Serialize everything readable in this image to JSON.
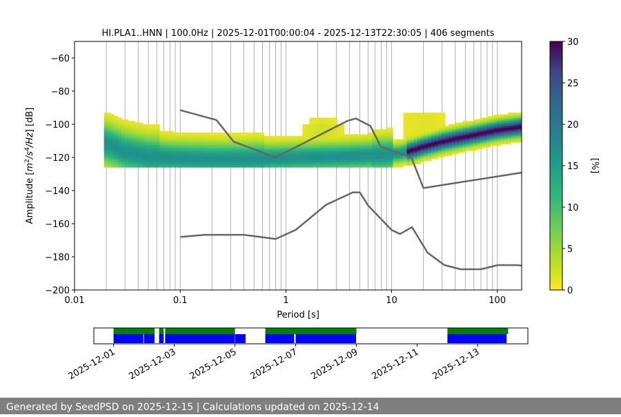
{
  "chart_data": [
    {
      "type": "heatmap",
      "title": "HI.PLA1..HNN | 100.0Hz | 2025-12-01T00:00:04 - 2025-12-13T22:30:05 | 406 segments",
      "xlabel": "Period [s]",
      "ylabel_parts": {
        "pre": "Amplitude [",
        "m": "m",
        "m_exp": "2",
        "slash": "/",
        "s": "s",
        "s_exp": "4",
        "rest": "/Hz",
        "post": "] [dB]"
      },
      "x_scale": "log",
      "xlim": [
        0.01,
        170
      ],
      "ylim": [
        -200,
        -50
      ],
      "x_ticks": [
        0.01,
        0.1,
        1,
        10,
        100
      ],
      "x_tick_labels": [
        "0.01",
        "0.1",
        "1",
        "10",
        "100"
      ],
      "y_ticks": [
        -200,
        -180,
        -160,
        -140,
        -120,
        -100,
        -80,
        -60
      ],
      "y_tick_labels": [
        "−200",
        "−180",
        "−160",
        "−140",
        "−120",
        "−100",
        "−80",
        "−60"
      ],
      "grid": "vertical, log period",
      "colormap": "viridis_r",
      "colorbar": {
        "label": "[%]",
        "min": 0,
        "max": 30,
        "ticks": [
          0,
          5,
          10,
          15,
          20,
          25,
          30
        ],
        "tick_labels": [
          "0",
          "5",
          "10",
          "15",
          "20",
          "25",
          "30"
        ]
      },
      "mode_curve": {
        "period": [
          0.02,
          0.03,
          0.05,
          0.1,
          0.2,
          0.4,
          0.8,
          1.5,
          3,
          5,
          8,
          12,
          16,
          20,
          30,
          50,
          100,
          170
        ],
        "db": [
          -112,
          -117,
          -120,
          -121,
          -121.5,
          -121.5,
          -121,
          -120.5,
          -120,
          -119.5,
          -119,
          -118,
          -116,
          -114,
          -111,
          -108,
          -104,
          -102
        ]
      },
      "noise_models": [
        {
          "name": "NHNM",
          "color": "#666666",
          "period": [
            0.1,
            0.22,
            0.32,
            0.8,
            3.8,
            4.6,
            6.3,
            7.9,
            15.4,
            20,
            354.8
          ],
          "db": [
            -91.5,
            -97.4,
            -110.5,
            -120,
            -98,
            -96.5,
            -101,
            -113.5,
            -120,
            -138.5,
            -126
          ]
        },
        {
          "name": "NLNM",
          "color": "#666666",
          "period": [
            0.1,
            0.17,
            0.4,
            0.8,
            1.24,
            2.4,
            4.3,
            5.0,
            6.0,
            10.0,
            12.0,
            15.6,
            21.9,
            31.6,
            45,
            70,
            101,
            154,
            328,
            600
          ],
          "db": [
            -168,
            -166.7,
            -166.7,
            -169.2,
            -163.7,
            -148.6,
            -141.1,
            -141.1,
            -149.0,
            -163.8,
            -166.2,
            -162.1,
            -177.5,
            -185.0,
            -187.5,
            -187.5,
            -185.0,
            -185.0,
            -187.5,
            -184.4
          ]
        }
      ]
    },
    {
      "type": "timeline",
      "x_tick_labels": [
        "2025-12-01",
        "2025-12-03",
        "2025-12-05",
        "2025-12-07",
        "2025-12-09",
        "2025-12-11",
        "2025-12-13"
      ],
      "x_tick_days": [
        0,
        2,
        4,
        6,
        8,
        10,
        12
      ],
      "xlim_days": [
        -0.65,
        13.65
      ],
      "data_coverage": {
        "color": "#0000ff",
        "segments_days": [
          [
            0.0,
            0.98
          ],
          [
            1.0,
            1.35
          ],
          [
            1.5,
            1.65
          ],
          [
            1.7,
            3.99
          ],
          [
            4.0,
            4.35
          ],
          [
            5.0,
            5.95
          ],
          [
            6.0,
            7.99
          ],
          [
            11.0,
            12.95
          ]
        ]
      },
      "psd_coverage": {
        "color": "#008000",
        "segments_days": [
          [
            0.0,
            1.35
          ],
          [
            1.5,
            1.65
          ],
          [
            1.7,
            4.0
          ],
          [
            5.0,
            8.0
          ],
          [
            11.0,
            13.0
          ]
        ]
      }
    }
  ],
  "footer": {
    "text": "Generated by SeedPSD on 2025-12-15 | Calculations updated on 2025-12-14"
  }
}
